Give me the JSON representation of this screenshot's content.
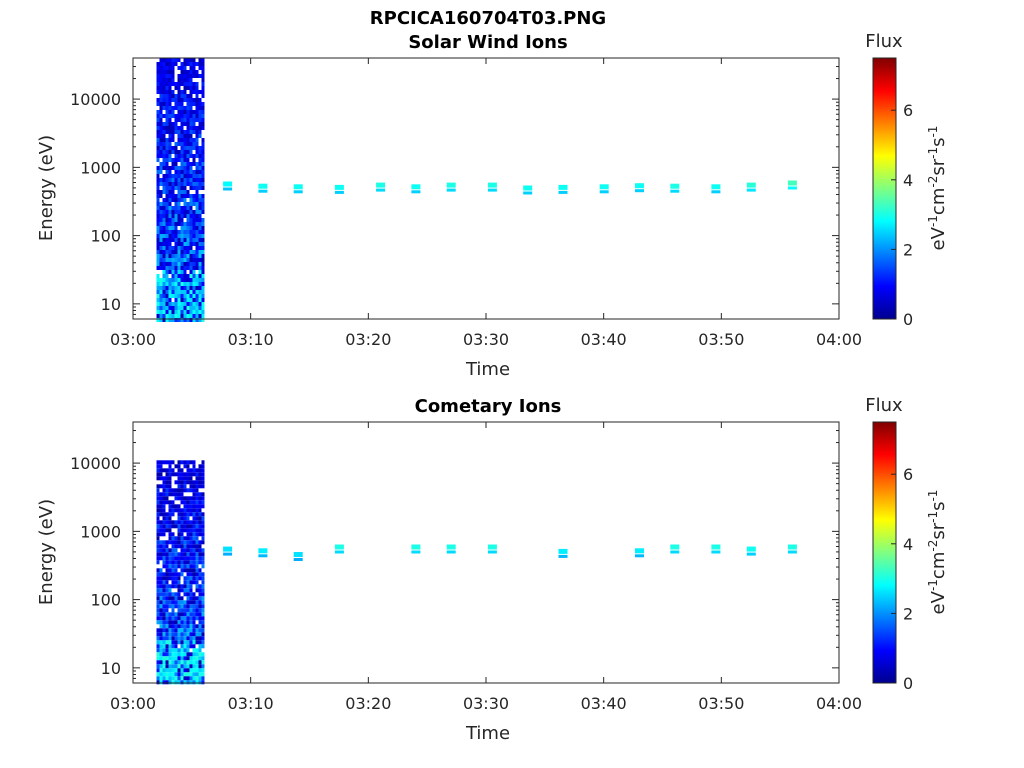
{
  "figure": {
    "title": "RPCICA160704T03.PNG"
  },
  "colormap": [
    "#00008f",
    "#0000ff",
    "#0080ff",
    "#00ffff",
    "#80ff80",
    "#ffff00",
    "#ff8000",
    "#ff0000",
    "#800000"
  ],
  "panels": [
    {
      "title": "Solar Wind Ions",
      "xlabel": "Time",
      "ylabel": "Energy (eV)",
      "colorbar": {
        "title": "Flux",
        "label": "eV-1cm-2sr-1s-1",
        "range": [
          0,
          7.5
        ],
        "ticks": [
          "0",
          "2",
          "4",
          "6"
        ]
      }
    },
    {
      "title": "Cometary Ions",
      "xlabel": "Time",
      "ylabel": "Energy (eV)",
      "colorbar": {
        "title": "Flux",
        "label": "eV-1cm-2sr-1s-1",
        "range": [
          0,
          7.5
        ],
        "ticks": [
          "0",
          "2",
          "4",
          "6"
        ]
      }
    }
  ],
  "chart_data": [
    {
      "type": "heatmap",
      "title": "Solar Wind Ions",
      "xlabel": "Time",
      "ylabel": "Energy (eV)",
      "x_range": [
        "03:00",
        "04:00"
      ],
      "x_ticks": [
        "03:00",
        "03:10",
        "03:20",
        "03:30",
        "03:40",
        "03:50",
        "04:00"
      ],
      "y_scale": "log",
      "y_range": [
        6,
        40000
      ],
      "y_ticks": [
        "10",
        "100",
        "1000",
        "10000"
      ],
      "colorbar": {
        "title": "Flux",
        "range": [
          0,
          7.5
        ]
      },
      "dense_block": {
        "t_start": "03:02",
        "t_end": "03:06",
        "e_min": 6,
        "e_max": 40000,
        "flux_range": [
          0.3,
          2.8
        ]
      },
      "beam_points": [
        {
          "t": "03:08",
          "e": 560,
          "flux": 2.8
        },
        {
          "t": "03:11",
          "e": 520,
          "flux": 2.9
        },
        {
          "t": "03:14",
          "e": 510,
          "flux": 2.9
        },
        {
          "t": "03:17.5",
          "e": 500,
          "flux": 2.9
        },
        {
          "t": "03:21",
          "e": 540,
          "flux": 3.0
        },
        {
          "t": "03:24",
          "e": 510,
          "flux": 2.9
        },
        {
          "t": "03:27",
          "e": 540,
          "flux": 3.0
        },
        {
          "t": "03:30.5",
          "e": 540,
          "flux": 3.0
        },
        {
          "t": "03:33.5",
          "e": 490,
          "flux": 2.9
        },
        {
          "t": "03:36.5",
          "e": 500,
          "flux": 2.9
        },
        {
          "t": "03:40",
          "e": 510,
          "flux": 2.9
        },
        {
          "t": "03:43",
          "e": 530,
          "flux": 2.9
        },
        {
          "t": "03:46",
          "e": 520,
          "flux": 3.0
        },
        {
          "t": "03:49.5",
          "e": 510,
          "flux": 2.9
        },
        {
          "t": "03:52.5",
          "e": 540,
          "flux": 3.1
        },
        {
          "t": "03:56",
          "e": 580,
          "flux": 3.3
        }
      ]
    },
    {
      "type": "heatmap",
      "title": "Cometary Ions",
      "xlabel": "Time",
      "ylabel": "Energy (eV)",
      "x_range": [
        "03:00",
        "04:00"
      ],
      "x_ticks": [
        "03:00",
        "03:10",
        "03:20",
        "03:30",
        "03:40",
        "03:50",
        "04:00"
      ],
      "y_scale": "log",
      "y_range": [
        6,
        40000
      ],
      "y_ticks": [
        "10",
        "100",
        "1000",
        "10000"
      ],
      "colorbar": {
        "title": "Flux",
        "range": [
          0,
          7.5
        ]
      },
      "dense_block": {
        "t_start": "03:02",
        "t_end": "03:06",
        "e_min": 6,
        "e_max": 11000,
        "flux_range": [
          0.2,
          2.8
        ]
      },
      "beam_points": [
        {
          "t": "03:08",
          "e": 540,
          "flux": 2.6
        },
        {
          "t": "03:11",
          "e": 510,
          "flux": 2.7
        },
        {
          "t": "03:14",
          "e": 450,
          "flux": 2.6
        },
        {
          "t": "03:17.5",
          "e": 580,
          "flux": 3.0
        },
        {
          "t": "03:24",
          "e": 580,
          "flux": 3.0
        },
        {
          "t": "03:27",
          "e": 580,
          "flux": 3.0
        },
        {
          "t": "03:30.5",
          "e": 580,
          "flux": 3.0
        },
        {
          "t": "03:36.5",
          "e": 500,
          "flux": 2.7
        },
        {
          "t": "03:43",
          "e": 510,
          "flux": 2.7
        },
        {
          "t": "03:46",
          "e": 580,
          "flux": 3.0
        },
        {
          "t": "03:49.5",
          "e": 580,
          "flux": 3.0
        },
        {
          "t": "03:52.5",
          "e": 540,
          "flux": 2.9
        },
        {
          "t": "03:56",
          "e": 580,
          "flux": 3.0
        }
      ]
    }
  ]
}
